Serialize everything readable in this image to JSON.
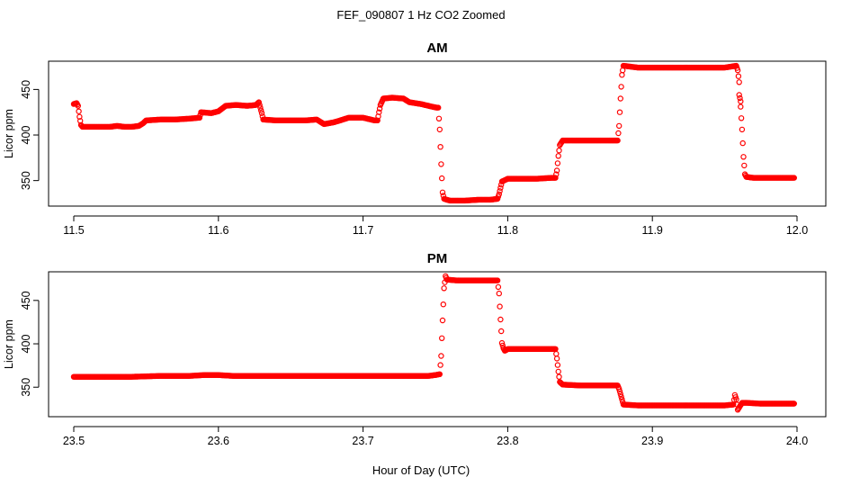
{
  "page": {
    "title": "FEF_090807  1 Hz CO2 Zoomed",
    "xlabel": "Hour of Day (UTC)"
  },
  "colors": {
    "points": "#ff0000",
    "axes": "#000000",
    "background": "#ffffff"
  },
  "chart_data": [
    {
      "type": "scatter",
      "title": "AM",
      "xlabel": "",
      "ylabel": "Licor ppm",
      "xlim": [
        11.5,
        12.0
      ],
      "ylim": [
        322,
        481
      ],
      "xticks": [
        11.5,
        11.6,
        11.7,
        11.8,
        11.9,
        12.0
      ],
      "xtick_labels": [
        "11.5",
        "11.6",
        "11.7",
        "11.8",
        "11.9",
        "12.0"
      ],
      "yticks": [
        350,
        400,
        450
      ],
      "ytick_labels": [
        "350",
        "400",
        "450"
      ],
      "grid": false,
      "legend": "none",
      "series": [
        {
          "values_xy": [
            [
              11.5,
              434
            ],
            [
              11.502,
              435
            ],
            [
              11.503,
              432
            ],
            [
              11.504,
              420
            ],
            [
              11.505,
              411
            ],
            [
              11.506,
              409
            ],
            [
              11.515,
              409
            ],
            [
              11.525,
              409
            ],
            [
              11.53,
              410
            ],
            [
              11.535,
              409
            ],
            [
              11.54,
              409
            ],
            [
              11.545,
              410
            ],
            [
              11.548,
              413
            ],
            [
              11.55,
              416
            ],
            [
              11.56,
              417
            ],
            [
              11.57,
              417
            ],
            [
              11.58,
              418
            ],
            [
              11.587,
              419
            ],
            [
              11.588,
              425
            ],
            [
              11.595,
              424
            ],
            [
              11.6,
              426
            ],
            [
              11.605,
              432
            ],
            [
              11.612,
              433
            ],
            [
              11.62,
              432
            ],
            [
              11.626,
              433
            ],
            [
              11.628,
              436
            ],
            [
              11.629,
              430
            ],
            [
              11.63,
              424
            ],
            [
              11.631,
              417
            ],
            [
              11.64,
              416
            ],
            [
              11.65,
              416
            ],
            [
              11.66,
              416
            ],
            [
              11.668,
              417
            ],
            [
              11.673,
              412
            ],
            [
              11.68,
              414
            ],
            [
              11.69,
              419
            ],
            [
              11.7,
              419
            ],
            [
              11.708,
              416
            ],
            [
              11.71,
              416
            ],
            [
              11.711,
              425
            ],
            [
              11.712,
              433
            ],
            [
              11.714,
              440
            ],
            [
              11.72,
              441
            ],
            [
              11.728,
              440
            ],
            [
              11.732,
              436
            ],
            [
              11.74,
              434
            ],
            [
              11.748,
              431
            ],
            [
              11.751,
              430
            ],
            [
              11.752,
              430
            ],
            [
              11.753,
              406
            ],
            [
              11.754,
              368
            ],
            [
              11.755,
              337
            ],
            [
              11.756,
              330
            ],
            [
              11.76,
              328
            ],
            [
              11.77,
              328
            ],
            [
              11.78,
              329
            ],
            [
              11.788,
              329
            ],
            [
              11.793,
              330
            ],
            [
              11.794,
              335
            ],
            [
              11.795,
              342
            ],
            [
              11.796,
              349
            ],
            [
              11.8,
              352
            ],
            [
              11.81,
              352
            ],
            [
              11.82,
              352
            ],
            [
              11.83,
              353
            ],
            [
              11.833,
              353
            ],
            [
              11.834,
              361
            ],
            [
              11.835,
              377
            ],
            [
              11.836,
              389
            ],
            [
              11.838,
              394
            ],
            [
              11.85,
              394
            ],
            [
              11.86,
              394
            ],
            [
              11.87,
              394
            ],
            [
              11.876,
              394
            ],
            [
              11.877,
              410
            ],
            [
              11.878,
              440
            ],
            [
              11.879,
              466
            ],
            [
              11.88,
              476
            ],
            [
              11.89,
              474
            ],
            [
              11.9,
              474
            ],
            [
              11.91,
              474
            ],
            [
              11.92,
              474
            ],
            [
              11.93,
              474
            ],
            [
              11.94,
              474
            ],
            [
              11.95,
              474
            ],
            [
              11.958,
              476
            ],
            [
              11.959,
              471
            ],
            [
              11.96,
              458
            ],
            [
              11.96,
              444
            ],
            [
              11.961,
              437
            ],
            [
              11.961,
              431
            ],
            [
              11.962,
              406
            ],
            [
              11.963,
              376
            ],
            [
              11.964,
              357
            ],
            [
              11.965,
              354
            ],
            [
              11.97,
              353
            ],
            [
              11.98,
              353
            ],
            [
              11.99,
              353
            ],
            [
              11.998,
              353
            ]
          ]
        }
      ]
    },
    {
      "type": "scatter",
      "title": "PM",
      "xlabel": "",
      "ylabel": "Licor ppm",
      "xlim": [
        23.5,
        24.0
      ],
      "ylim": [
        316,
        483
      ],
      "xticks": [
        23.5,
        23.6,
        23.7,
        23.8,
        23.9,
        24.0
      ],
      "xtick_labels": [
        "23.5",
        "23.6",
        "23.7",
        "23.8",
        "23.9",
        "24.0"
      ],
      "yticks": [
        350,
        400,
        450
      ],
      "ytick_labels": [
        "350",
        "400",
        "450"
      ],
      "grid": false,
      "legend": "none",
      "series": [
        {
          "values_xy": [
            [
              23.5,
              362
            ],
            [
              23.52,
              362
            ],
            [
              23.54,
              362
            ],
            [
              23.56,
              363
            ],
            [
              23.58,
              363
            ],
            [
              23.59,
              364
            ],
            [
              23.6,
              364
            ],
            [
              23.61,
              363
            ],
            [
              23.63,
              363
            ],
            [
              23.65,
              363
            ],
            [
              23.67,
              363
            ],
            [
              23.69,
              363
            ],
            [
              23.71,
              363
            ],
            [
              23.73,
              363
            ],
            [
              23.745,
              363
            ],
            [
              23.75,
              364
            ],
            [
              23.753,
              365
            ],
            [
              23.754,
              386
            ],
            [
              23.755,
              427
            ],
            [
              23.756,
              464
            ],
            [
              23.757,
              478
            ],
            [
              23.758,
              474
            ],
            [
              23.765,
              473
            ],
            [
              23.775,
              473
            ],
            [
              23.785,
              473
            ],
            [
              23.793,
              473
            ],
            [
              23.794,
              458
            ],
            [
              23.795,
              428
            ],
            [
              23.796,
              401
            ],
            [
              23.797,
              395
            ],
            [
              23.798,
              392
            ],
            [
              23.8,
              394
            ],
            [
              23.81,
              394
            ],
            [
              23.82,
              394
            ],
            [
              23.83,
              394
            ],
            [
              23.833,
              394
            ],
            [
              23.834,
              383
            ],
            [
              23.835,
              368
            ],
            [
              23.836,
              356
            ],
            [
              23.838,
              353
            ],
            [
              23.85,
              352
            ],
            [
              23.86,
              352
            ],
            [
              23.87,
              352
            ],
            [
              23.876,
              352
            ],
            [
              23.877,
              348
            ],
            [
              23.878,
              342
            ],
            [
              23.879,
              336
            ],
            [
              23.88,
              330
            ],
            [
              23.89,
              329
            ],
            [
              23.9,
              329
            ],
            [
              23.91,
              329
            ],
            [
              23.92,
              329
            ],
            [
              23.93,
              329
            ],
            [
              23.94,
              329
            ],
            [
              23.95,
              329
            ],
            [
              23.956,
              330
            ],
            [
              23.957,
              341
            ],
            [
              23.958,
              336
            ],
            [
              23.959,
              324
            ],
            [
              23.962,
              332
            ],
            [
              23.965,
              332
            ],
            [
              23.975,
              331
            ],
            [
              23.985,
              331
            ],
            [
              23.995,
              331
            ],
            [
              23.998,
              331
            ]
          ]
        }
      ]
    }
  ]
}
